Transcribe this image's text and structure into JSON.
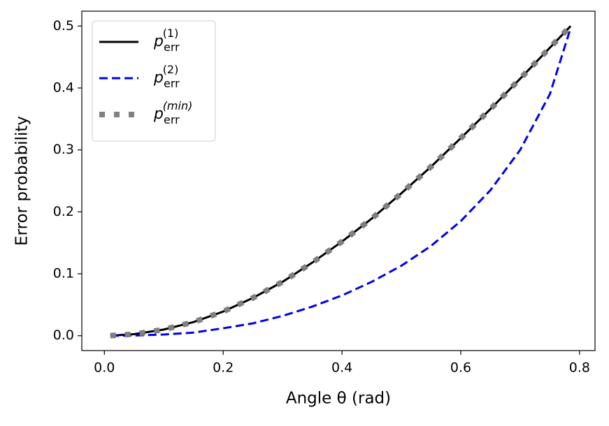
{
  "chart_data": {
    "type": "line",
    "xlabel": "Angle θ (rad)",
    "ylabel": "Error probability",
    "x": [
      0.01,
      0.05,
      0.1,
      0.15,
      0.2,
      0.25,
      0.3,
      0.35,
      0.4,
      0.45,
      0.5,
      0.55,
      0.6,
      0.65,
      0.7,
      0.75,
      0.785
    ],
    "series": [
      {
        "name": "p_err^(1)",
        "color": "#000000",
        "style": "solid",
        "values": [
          0.0001,
          0.0025,
          0.01,
          0.022,
          0.039,
          0.061,
          0.087,
          0.118,
          0.152,
          0.189,
          0.23,
          0.273,
          0.319,
          0.366,
          0.415,
          0.465,
          0.5
        ]
      },
      {
        "name": "p_err^(2)",
        "color": "#0000ee",
        "style": "dashed",
        "values": [
          0,
          0.0003,
          0.002,
          0.005,
          0.012,
          0.02,
          0.032,
          0.047,
          0.065,
          0.087,
          0.113,
          0.145,
          0.185,
          0.235,
          0.3,
          0.39,
          0.497
        ]
      },
      {
        "name": "p_err^(min)",
        "color": "#808080",
        "style": "dotted",
        "values": [
          0.0001,
          0.0025,
          0.01,
          0.022,
          0.039,
          0.061,
          0.087,
          0.118,
          0.152,
          0.189,
          0.23,
          0.273,
          0.319,
          0.366,
          0.415,
          0.465,
          0.5
        ]
      }
    ],
    "xlim": [
      -0.038,
      0.826
    ],
    "ylim": [
      -0.024,
      0.524
    ],
    "xticks": [
      {
        "value": 0,
        "label": "0.0"
      },
      0.2,
      0.4,
      0.6,
      0.8
    ],
    "yticks": [
      {
        "value": 0,
        "label": "0.0"
      },
      0.1,
      0.2,
      0.3,
      0.4,
      0.5
    ],
    "legend": "upper left"
  }
}
